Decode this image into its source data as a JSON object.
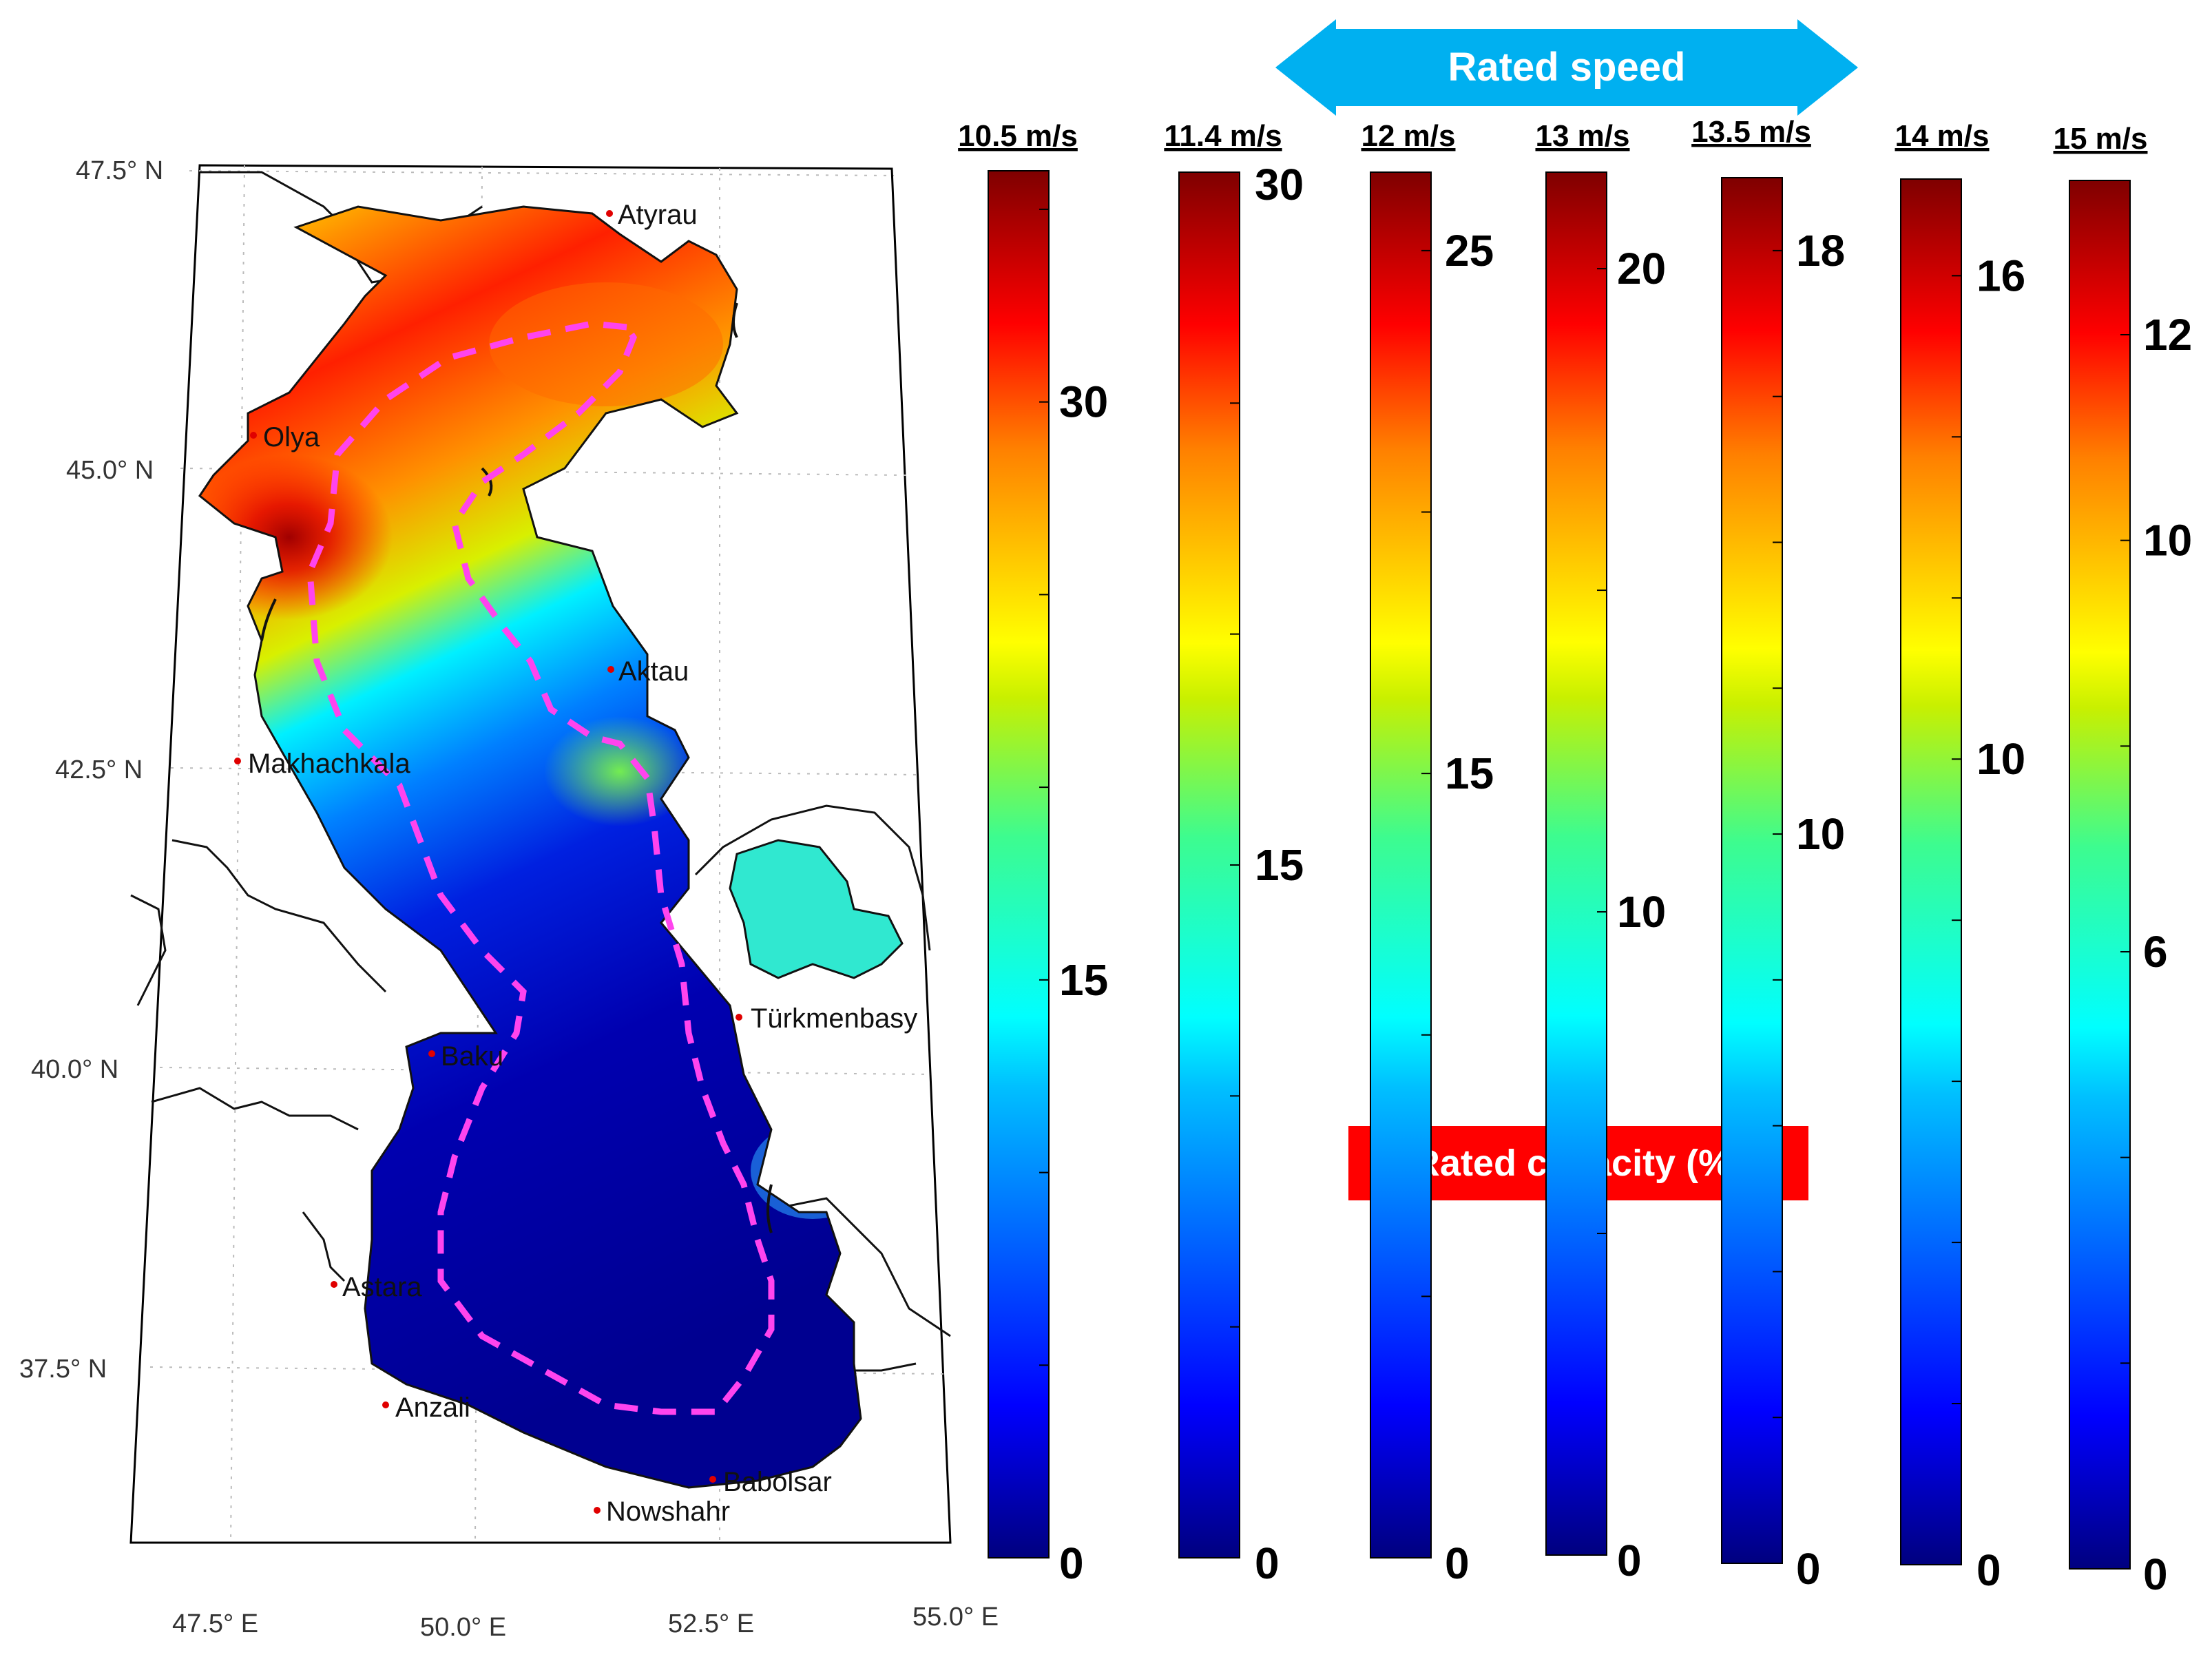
{
  "map": {
    "graticule": {
      "lat_labels": [
        "47.5° N",
        "45.0° N",
        "42.5° N",
        "40.0° N",
        "37.5° N"
      ],
      "lon_labels": [
        "47.5° E",
        "50.0° E",
        "52.5° E",
        "55.0° E"
      ]
    },
    "cities": [
      {
        "name": "Atyrau"
      },
      {
        "name": "Olya"
      },
      {
        "name": "Aktau"
      },
      {
        "name": "Makhachkala"
      },
      {
        "name": "Türkmenbasy"
      },
      {
        "name": "Baku"
      },
      {
        "name": "Astara"
      },
      {
        "name": "Anzali"
      },
      {
        "name": "Babolsar"
      },
      {
        "name": "Nowshahr"
      }
    ],
    "contour_color": "#ff44ee",
    "marker_color": "#e00000"
  },
  "banner": {
    "rated_speed": "Rated speed",
    "rated_capacity": "Rated capacity (%)",
    "speed_color": "#00b0f0",
    "capacity_color": "#ff0000"
  },
  "colorbars": [
    {
      "title": "10.5 m/s",
      "max": 36,
      "ticks": [
        "0",
        "15",
        "30"
      ]
    },
    {
      "title": "11.4 m/s",
      "max": 30,
      "ticks": [
        "0",
        "15",
        "30"
      ]
    },
    {
      "title": "12 m/s",
      "max": 26.5,
      "ticks": [
        "0",
        "15",
        "25"
      ]
    },
    {
      "title": "13 m/s",
      "max": 21.5,
      "ticks": [
        "0",
        "10",
        "20"
      ]
    },
    {
      "title": "13.5 m/s",
      "max": 19,
      "ticks": [
        "0",
        "10",
        "18"
      ]
    },
    {
      "title": "14 m/s",
      "max": 17.2,
      "ticks": [
        "0",
        "10",
        "16"
      ]
    },
    {
      "title": "15 m/s",
      "max": 13.5,
      "ticks": [
        "0",
        "6",
        "10",
        "12"
      ]
    }
  ],
  "colormap": [
    "#00007f",
    "#0000ff",
    "#007fff",
    "#00ffff",
    "#7fff7f",
    "#ffff00",
    "#ff7f00",
    "#ff0000",
    "#7f0000"
  ]
}
